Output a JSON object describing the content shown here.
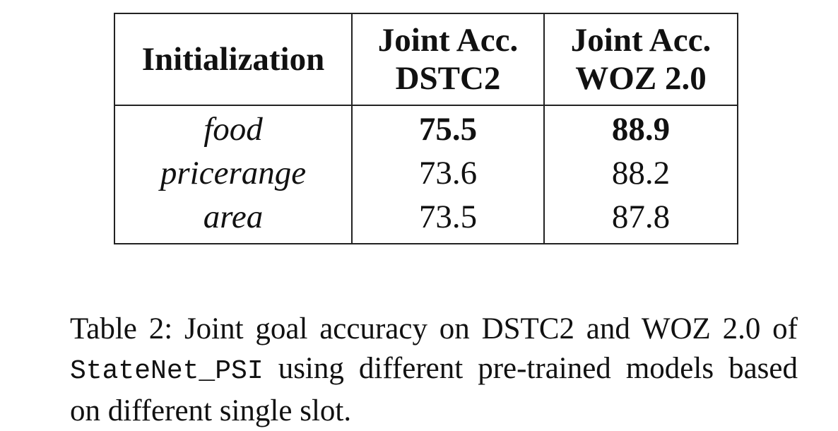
{
  "table": {
    "headers": {
      "initialization": "Initialization",
      "dstc2_line1": "Joint Acc.",
      "dstc2_line2": "DSTC2",
      "woz_line1": "Joint Acc.",
      "woz_line2": "WOZ 2.0"
    },
    "rows": [
      {
        "slot": "food",
        "dstc2": "75.5",
        "woz": "88.9"
      },
      {
        "slot": "pricerange",
        "dstc2": "73.6",
        "woz": "88.2"
      },
      {
        "slot": "area",
        "dstc2": "73.5",
        "woz": "87.8"
      }
    ]
  },
  "caption": {
    "label": "Table 2:",
    "text_before": "Joint goal accuracy on DSTC2 and WOZ 2.0 of",
    "model_name": "StateNet_PSI",
    "text_after": "using different pre-trained models based on different single slot."
  }
}
